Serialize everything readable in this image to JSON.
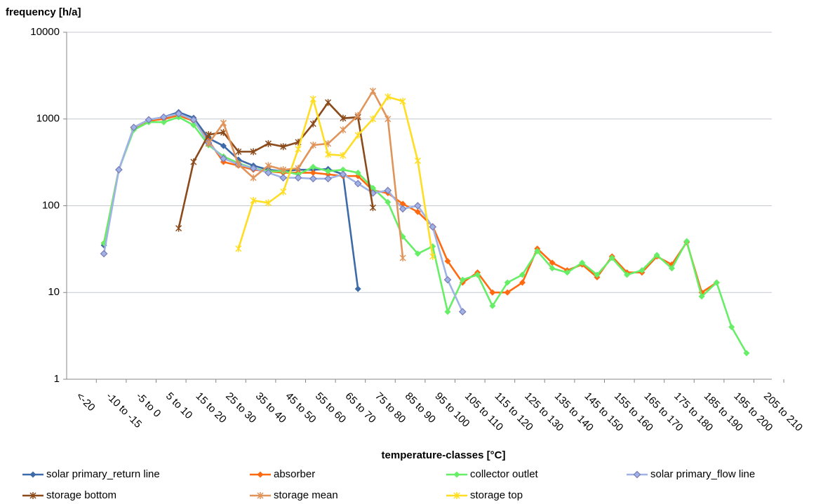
{
  "chart_data": {
    "type": "line",
    "ylabel": "frequency [h/a]",
    "xlabel": "temperature-classes [°C]",
    "log_scale": true,
    "grid": true,
    "legend": "bottom",
    "ylim": [
      1,
      10000
    ],
    "yticks": [
      1,
      10,
      100,
      1000,
      10000
    ],
    "categories": [
      null,
      "<-20",
      null,
      "-10 to -15",
      null,
      "-5 to 0",
      null,
      "5 to 10",
      null,
      "15 to 20",
      null,
      "25 to 30",
      null,
      "35 to 40",
      null,
      "45 to 50",
      null,
      "55 to 60",
      null,
      "65 to 70",
      null,
      "75 to 80",
      null,
      "85 to 90",
      null,
      "95 to 100",
      null,
      "105 to 110",
      null,
      "115 to 120",
      null,
      "125 to 130",
      null,
      "135 to 140",
      null,
      "145 to 150",
      null,
      "155 to 160",
      null,
      "165 to 170",
      null,
      "175 to 180",
      null,
      "185 to 190",
      null,
      "195 to 200",
      null,
      "205 to 210"
    ],
    "series": [
      {
        "name": "solar primary_return line",
        "color": "#3d6aa8",
        "marker": "diamond",
        "values": [
          null,
          null,
          35,
          260,
          800,
          980,
          1050,
          1200,
          1030,
          600,
          490,
          340,
          290,
          260,
          250,
          260,
          260,
          265,
          230,
          11,
          null,
          null,
          null,
          null,
          null,
          null,
          null,
          null,
          null,
          null,
          null,
          null,
          null,
          null,
          null,
          null,
          null,
          null,
          null,
          null,
          null,
          null,
          null,
          null,
          null,
          null,
          null,
          null
        ]
      },
      {
        "name": "absorber",
        "color": "#ff6a10",
        "marker": "diamond",
        "values": [
          null,
          null,
          37,
          260,
          780,
          950,
          1000,
          1100,
          950,
          560,
          320,
          290,
          260,
          250,
          240,
          240,
          240,
          230,
          220,
          220,
          150,
          140,
          105,
          85,
          58,
          23,
          13,
          17,
          10,
          10,
          13,
          32,
          22,
          18,
          21,
          15,
          26,
          17,
          17,
          26,
          21,
          38,
          10,
          13,
          null,
          null,
          null,
          null
        ]
      },
      {
        "name": "collector outlet",
        "color": "#66ee66",
        "marker": "diamond",
        "values": [
          null,
          null,
          37,
          260,
          750,
          920,
          920,
          1050,
          850,
          500,
          370,
          310,
          270,
          250,
          250,
          230,
          280,
          250,
          260,
          240,
          160,
          110,
          44,
          28,
          34,
          6,
          14,
          16,
          7,
          13,
          16,
          30,
          19,
          17,
          22,
          16,
          25,
          16,
          18,
          27,
          19,
          39,
          9,
          13,
          4,
          2,
          null,
          null
        ]
      },
      {
        "name": "solar primary_flow line",
        "color": "#9fb4e4",
        "marker": "diamond",
        "values": [
          null,
          null,
          28,
          260,
          800,
          980,
          1050,
          1150,
          980,
          530,
          350,
          300,
          270,
          240,
          210,
          210,
          205,
          205,
          230,
          180,
          140,
          150,
          92,
          100,
          57,
          14,
          6,
          null,
          null,
          null,
          null,
          null,
          null,
          null,
          null,
          null,
          null,
          null,
          null,
          null,
          null,
          null,
          null,
          null,
          null,
          null,
          null,
          null
        ]
      },
      {
        "name": "storage bottom",
        "color": "#8b4a1a",
        "marker": "star",
        "values": [
          null,
          null,
          null,
          null,
          null,
          null,
          null,
          55,
          320,
          660,
          700,
          420,
          420,
          520,
          480,
          540,
          880,
          1550,
          1020,
          1050,
          95,
          null,
          null,
          null,
          null,
          null,
          null,
          null,
          null,
          null,
          null,
          null,
          null,
          null,
          null,
          null,
          null,
          null,
          null,
          null,
          null,
          null,
          null,
          null,
          null,
          null,
          null,
          null
        ]
      },
      {
        "name": "storage mean",
        "color": "#e0945a",
        "marker": "star",
        "values": [
          null,
          null,
          null,
          null,
          null,
          null,
          null,
          null,
          null,
          520,
          900,
          300,
          210,
          290,
          260,
          270,
          500,
          520,
          750,
          1100,
          2100,
          1000,
          25,
          null,
          null,
          null,
          null,
          null,
          null,
          null,
          null,
          null,
          null,
          null,
          null,
          null,
          null,
          null,
          null,
          null,
          null,
          null,
          null,
          null,
          null,
          null,
          null,
          null
        ]
      },
      {
        "name": "storage top",
        "color": "#ffdd22",
        "marker": "star",
        "values": [
          null,
          null,
          null,
          null,
          null,
          null,
          null,
          null,
          null,
          null,
          null,
          32,
          115,
          108,
          145,
          450,
          1700,
          390,
          380,
          650,
          1000,
          1800,
          1600,
          330,
          26,
          null,
          null,
          null,
          null,
          null,
          null,
          null,
          null,
          null,
          null,
          null,
          null,
          null,
          null,
          null,
          null,
          null,
          null,
          null,
          null,
          null,
          null,
          null
        ]
      }
    ]
  }
}
